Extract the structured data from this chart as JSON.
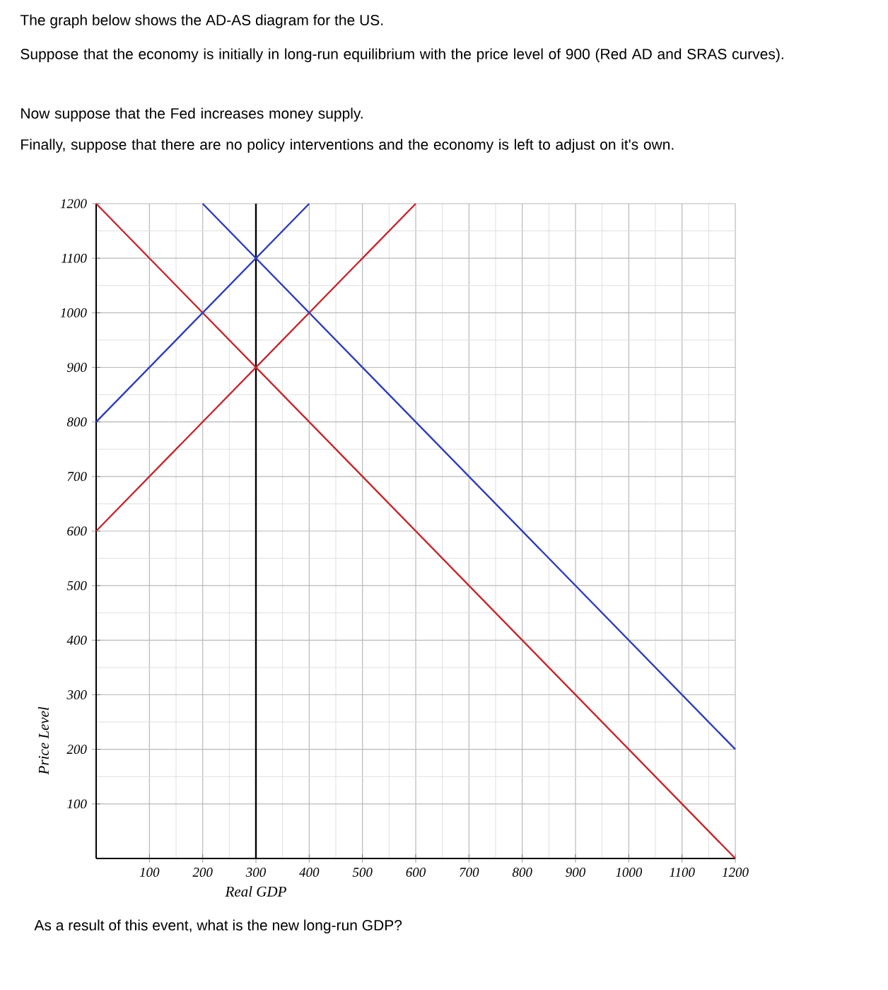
{
  "chart_data": {
    "type": "line",
    "title": "The graph below shows the AD-AS diagram for the US.",
    "annotations": [
      "Suppose that the economy is initially in long-run equilibrium with the price level of 900 (Red AD and SRAS curves).",
      "Now suppose that the Fed increases money supply.",
      "Finally, suppose that there are no policy interventions and the economy is left to adjust on it's own.",
      "As a result of this event, what is the new long-run GDP?"
    ],
    "xlabel": "Real GDP",
    "ylabel": "Price Level",
    "xlim": [
      0,
      1200
    ],
    "ylim": [
      0,
      1200
    ],
    "xticks": [
      100,
      200,
      300,
      400,
      500,
      600,
      700,
      800,
      900,
      1000,
      1100,
      1200
    ],
    "yticks": [
      100,
      200,
      300,
      400,
      500,
      600,
      700,
      800,
      900,
      1000,
      1100,
      1200
    ],
    "grid": true,
    "series": [
      {
        "color": "#c0282d",
        "x": [
          0,
          1200
        ],
        "values": [
          1200,
          0
        ]
      },
      {
        "color": "#c0282d",
        "x": [
          0,
          600
        ],
        "values": [
          600,
          1200
        ]
      },
      {
        "color": "#2e3cb8",
        "x": [
          200,
          1200
        ],
        "values": [
          1200,
          200
        ]
      },
      {
        "color": "#2e3cb8",
        "x": [
          0,
          400
        ],
        "values": [
          800,
          1200
        ]
      }
    ],
    "ref_lines": [
      {
        "axis": "x",
        "value": 300,
        "color": "#000000"
      }
    ]
  }
}
